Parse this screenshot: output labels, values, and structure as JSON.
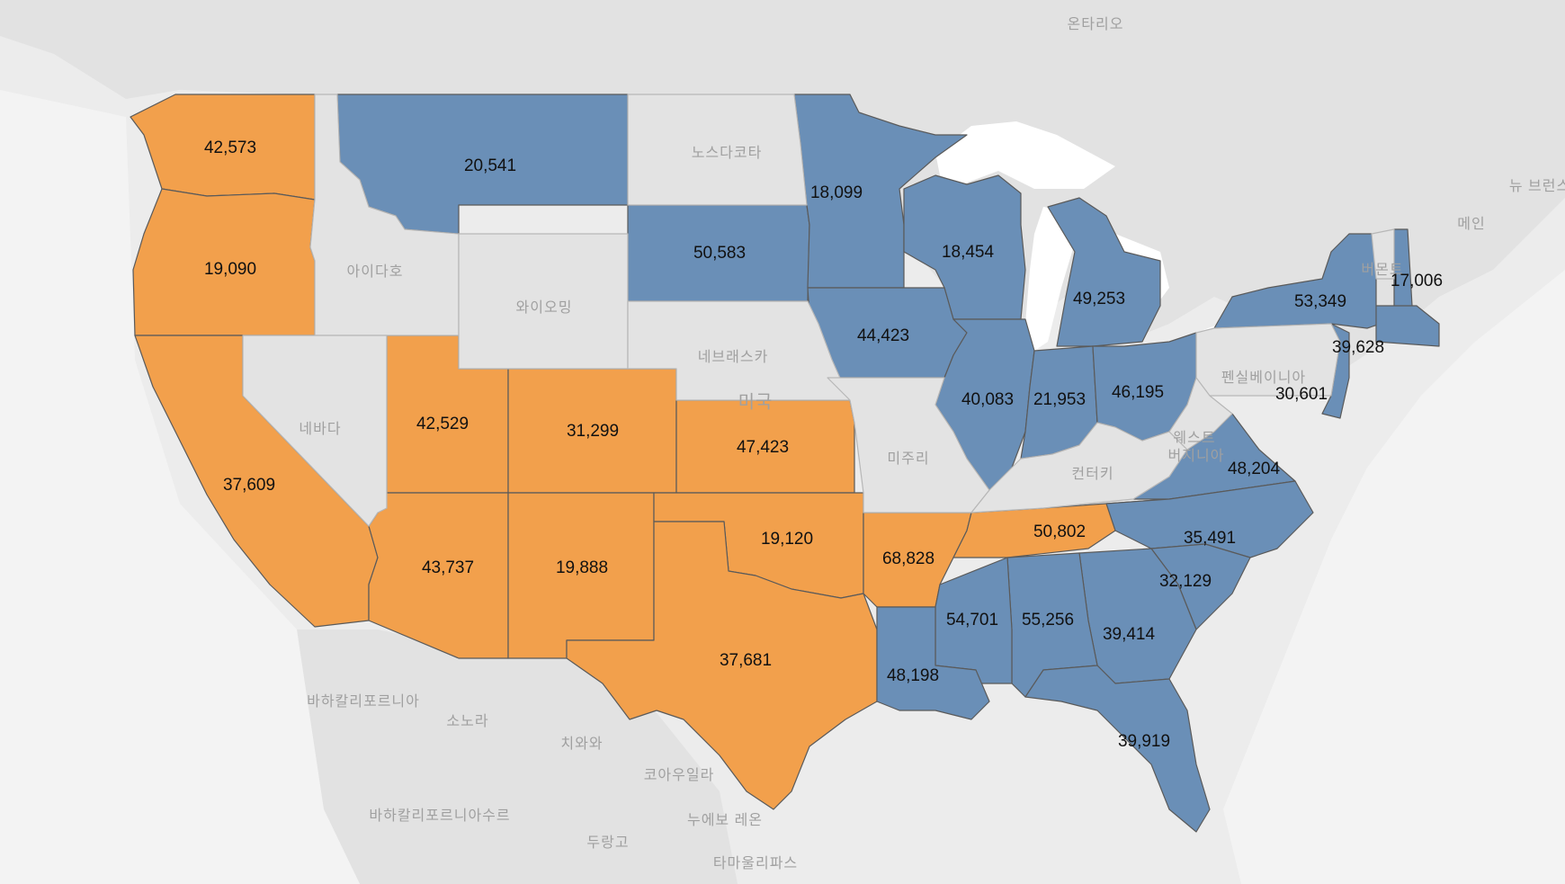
{
  "colors": {
    "background": "#ececec",
    "land": "#dedede",
    "water": "#ffffff",
    "state_gray": "#e3e3e3",
    "orange": "#f2a04c",
    "blue": "#6a8fb7"
  },
  "states": [
    {
      "id": "WA",
      "color": "orange",
      "value": "42,573"
    },
    {
      "id": "OR",
      "color": "orange",
      "value": "19,090"
    },
    {
      "id": "CA",
      "color": "orange",
      "value": "37,609"
    },
    {
      "id": "UT",
      "color": "orange",
      "value": "42,529"
    },
    {
      "id": "CO",
      "color": "orange",
      "value": "31,299"
    },
    {
      "id": "KS",
      "color": "orange",
      "value": "47,423"
    },
    {
      "id": "AZ",
      "color": "orange",
      "value": "43,737"
    },
    {
      "id": "NM",
      "color": "orange",
      "value": "19,888"
    },
    {
      "id": "OK",
      "color": "orange",
      "value": "19,120"
    },
    {
      "id": "TX",
      "color": "orange",
      "value": "37,681"
    },
    {
      "id": "AR",
      "color": "orange",
      "value": "68,828"
    },
    {
      "id": "TN",
      "color": "orange",
      "value": "50,802"
    },
    {
      "id": "MT",
      "color": "blue",
      "value": "20,541"
    },
    {
      "id": "SD",
      "color": "blue",
      "value": "50,583"
    },
    {
      "id": "MN",
      "color": "blue",
      "value": "18,099"
    },
    {
      "id": "WI",
      "color": "blue",
      "value": "18,454"
    },
    {
      "id": "IA",
      "color": "blue",
      "value": "44,423"
    },
    {
      "id": "MI",
      "color": "blue",
      "value": "49,253"
    },
    {
      "id": "IL",
      "color": "blue",
      "value": "40,083"
    },
    {
      "id": "IN",
      "color": "blue",
      "value": "21,953"
    },
    {
      "id": "OH",
      "color": "blue",
      "value": "46,195"
    },
    {
      "id": "NY",
      "color": "blue",
      "value": "53,349"
    },
    {
      "id": "NH",
      "color": "blue",
      "value": "17,006"
    },
    {
      "id": "NJ",
      "color": "blue",
      "value": "30,601"
    },
    {
      "id": "MA",
      "color": "blue",
      "value": "39,628"
    },
    {
      "id": "VA",
      "color": "blue",
      "value": "48,204"
    },
    {
      "id": "NC",
      "color": "blue",
      "value": "35,491"
    },
    {
      "id": "SC",
      "color": "blue",
      "value": "32,129"
    },
    {
      "id": "GA",
      "color": "blue",
      "value": "39,414"
    },
    {
      "id": "AL",
      "color": "blue",
      "value": "55,256"
    },
    {
      "id": "MS",
      "color": "blue",
      "value": "54,701"
    },
    {
      "id": "LA",
      "color": "blue",
      "value": "48,198"
    },
    {
      "id": "FL",
      "color": "blue",
      "value": "39,919"
    },
    {
      "id": "ID",
      "color": "gray"
    },
    {
      "id": "WY",
      "color": "gray"
    },
    {
      "id": "NV",
      "color": "gray"
    },
    {
      "id": "ND",
      "color": "gray"
    },
    {
      "id": "NE",
      "color": "gray"
    },
    {
      "id": "MO",
      "color": "gray"
    },
    {
      "id": "KY",
      "color": "gray"
    },
    {
      "id": "PA",
      "color": "gray"
    },
    {
      "id": "WV",
      "color": "gray"
    },
    {
      "id": "VT",
      "color": "gray"
    }
  ],
  "place_names": {
    "ontario": "온타리오",
    "north_dakota": "노스다코타",
    "idaho": "아이다호",
    "wyoming": "와이오밍",
    "nebraska": "네브래스카",
    "usa": "미국",
    "nevada": "네바다",
    "missouri": "미주리",
    "kentucky": "컨터키",
    "pennsylvania": "펜실베이니아",
    "west_virginia_1": "웨스트",
    "west_virginia_2": "버지니아",
    "maine": "메인",
    "new_brunswick": "뉴 브런스",
    "vermont": "버몬트",
    "baja_california": "바하칼리포르니아",
    "sonora": "소노라",
    "chihuahua": "치와와",
    "coahuila": "코아우일라",
    "baja_california_sur": "바하칼리포르니아수르",
    "durango": "두랑고",
    "nuevo_leon": "누에보 레온",
    "tamaulipas": "타마울리파스"
  }
}
